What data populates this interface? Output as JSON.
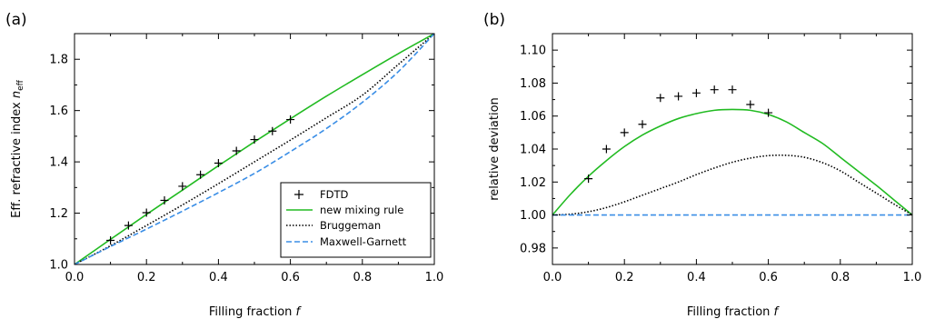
{
  "chart_data": [
    {
      "panel_label": "(a)",
      "type": "line",
      "xlabel": "Filling fraction",
      "xlabel_symbol": "f",
      "ylabel": "Eff. refractive index",
      "ylabel_symbol": "n",
      "ylabel_subscript": "eff",
      "xlim": [
        0.0,
        1.0
      ],
      "ylim": [
        1.0,
        1.9
      ],
      "xticks": [
        "0.0",
        "0.2",
        "0.4",
        "0.6",
        "0.8",
        "1.0"
      ],
      "yticks": [
        "1.0",
        "1.2",
        "1.4",
        "1.6",
        "1.8"
      ],
      "legend_position": "lower-right",
      "series": [
        {
          "name": "FDTD",
          "style": "markers",
          "marker": "+",
          "color": "#000000",
          "x": [
            0.1,
            0.15,
            0.2,
            0.25,
            0.3,
            0.35,
            0.4,
            0.45,
            0.5,
            0.55,
            0.6
          ],
          "y": [
            1.094,
            1.152,
            1.202,
            1.25,
            1.305,
            1.35,
            1.395,
            1.443,
            1.487,
            1.52,
            1.565
          ]
        },
        {
          "name": "new mixing rule",
          "style": "solid",
          "color": "#22bb22",
          "x": [
            0.0,
            0.1,
            0.2,
            0.3,
            0.4,
            0.5,
            0.6,
            0.7,
            0.8,
            0.9,
            1.0
          ],
          "y": [
            1.0,
            1.098,
            1.195,
            1.29,
            1.385,
            1.478,
            1.568,
            1.656,
            1.74,
            1.822,
            1.9
          ]
        },
        {
          "name": "Bruggeman",
          "style": "dotted",
          "color": "#000000",
          "x": [
            0.0,
            0.1,
            0.2,
            0.3,
            0.4,
            0.5,
            0.6,
            0.7,
            0.8,
            0.9,
            1.0
          ],
          "y": [
            1.0,
            1.073,
            1.152,
            1.232,
            1.315,
            1.4,
            1.485,
            1.572,
            1.66,
            1.78,
            1.9
          ]
        },
        {
          "name": "Maxwell-Garnett",
          "style": "dashed",
          "color": "#3a8ee6",
          "x": [
            0.0,
            0.1,
            0.2,
            0.3,
            0.4,
            0.5,
            0.6,
            0.7,
            0.8,
            0.9,
            1.0
          ],
          "y": [
            1.0,
            1.07,
            1.138,
            1.208,
            1.28,
            1.355,
            1.44,
            1.53,
            1.632,
            1.752,
            1.9
          ]
        }
      ]
    },
    {
      "panel_label": "(b)",
      "type": "line",
      "xlabel": "Filling fraction",
      "xlabel_symbol": "f",
      "ylabel": "relative deviation",
      "xlim": [
        0.0,
        1.0
      ],
      "ylim": [
        0.97,
        1.11
      ],
      "xticks": [
        "0.0",
        "0.2",
        "0.4",
        "0.6",
        "0.8",
        "1.0"
      ],
      "yticks": [
        "0.98",
        "1.00",
        "1.02",
        "1.04",
        "1.06",
        "1.08",
        "1.10"
      ],
      "series": [
        {
          "style": "markers",
          "marker": "+",
          "color": "#000000",
          "x": [
            0.1,
            0.15,
            0.2,
            0.25,
            0.3,
            0.35,
            0.4,
            0.45,
            0.5,
            0.55,
            0.6
          ],
          "y": [
            1.022,
            1.04,
            1.05,
            1.055,
            1.071,
            1.072,
            1.074,
            1.076,
            1.076,
            1.067,
            1.062
          ]
        },
        {
          "style": "solid",
          "color": "#22bb22",
          "x": [
            0.0,
            0.05,
            0.1,
            0.15,
            0.2,
            0.25,
            0.3,
            0.35,
            0.4,
            0.45,
            0.5,
            0.55,
            0.6,
            0.65,
            0.7,
            0.75,
            0.8,
            0.85,
            0.9,
            0.95,
            1.0
          ],
          "y": [
            1.0,
            1.0125,
            1.0235,
            1.033,
            1.0415,
            1.0485,
            1.054,
            1.0585,
            1.0615,
            1.0635,
            1.064,
            1.0635,
            1.061,
            1.0565,
            1.05,
            1.0435,
            1.035,
            1.0265,
            1.018,
            1.009,
            1.0
          ]
        },
        {
          "style": "dotted",
          "color": "#000000",
          "x": [
            0.0,
            0.05,
            0.1,
            0.15,
            0.2,
            0.25,
            0.3,
            0.35,
            0.4,
            0.45,
            0.5,
            0.55,
            0.6,
            0.65,
            0.7,
            0.75,
            0.8,
            0.85,
            0.9,
            0.95,
            1.0
          ],
          "y": [
            1.0,
            1.0005,
            1.002,
            1.0045,
            1.008,
            1.012,
            1.016,
            1.02,
            1.0245,
            1.0285,
            1.032,
            1.0345,
            1.036,
            1.0362,
            1.035,
            1.0318,
            1.0268,
            1.02,
            1.0133,
            1.0065,
            1.0
          ]
        },
        {
          "style": "dashed",
          "color": "#3a8ee6",
          "x": [
            0.0,
            1.0
          ],
          "y": [
            1.0,
            1.0
          ]
        }
      ]
    }
  ]
}
